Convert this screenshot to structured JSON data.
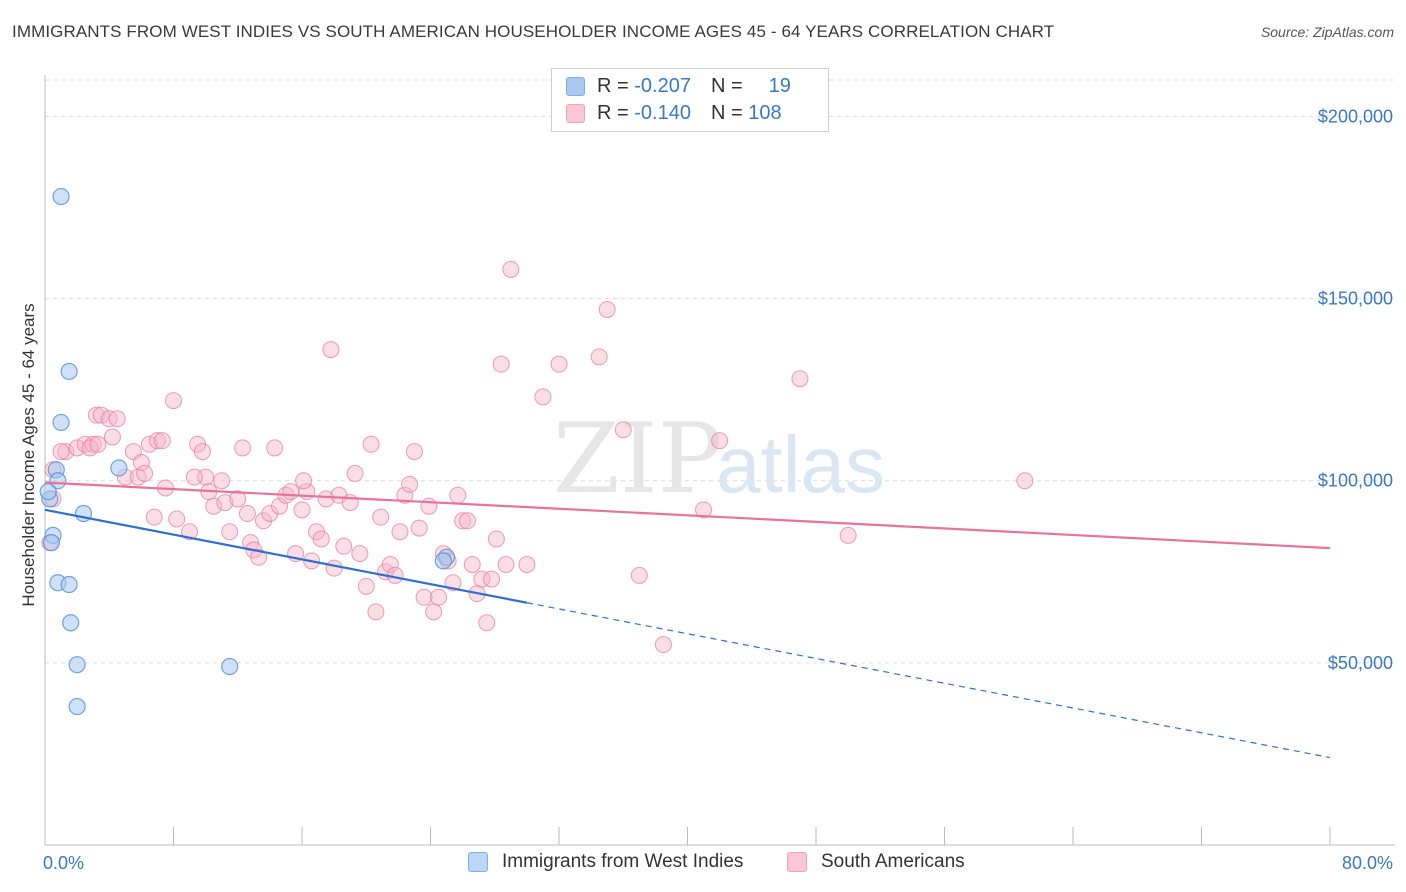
{
  "title": "IMMIGRANTS FROM WEST INDIES VS SOUTH AMERICAN HOUSEHOLDER INCOME AGES 45 - 64 YEARS CORRELATION CHART",
  "source": "Source: ZipAtlas.com",
  "watermark": {
    "zip": "ZIP",
    "atlas": "atlas"
  },
  "legend": {
    "rows": [
      {
        "r_label": "R =",
        "r_value": "-0.207",
        "n_label": "N =",
        "n_value": "19",
        "color": "#a8c8f0"
      },
      {
        "r_label": "R =",
        "r_value": "-0.140",
        "n_label": "N =",
        "n_value": "108",
        "color": "#f4b6c8"
      }
    ]
  },
  "bottom_legend": {
    "west_indies": "Immigrants from West Indies",
    "south_americans": "South Americans"
  },
  "chart_data": {
    "type": "scatter",
    "title": "IMMIGRANTS FROM WEST INDIES VS SOUTH AMERICAN HOUSEHOLDER INCOME AGES 45 - 64 YEARS CORRELATION CHART",
    "xlabel": "",
    "ylabel": "Householder Income Ages 45 - 64 years",
    "xlim": [
      0,
      80
    ],
    "ylim": [
      0,
      210000
    ],
    "x_tick_labels": [
      "0.0%",
      "80.0%"
    ],
    "y_ticks": [
      50000,
      100000,
      150000,
      200000
    ],
    "y_tick_labels": [
      "$50,000",
      "$100,000",
      "$150,000",
      "$200,000"
    ],
    "grid": "horizontal dashed",
    "legend_position": "top-center",
    "series": [
      {
        "name": "Immigrants from West Indies",
        "color": "#5b93d8",
        "fill": "#a8c8f0",
        "points": [
          [
            1.0,
            178000
          ],
          [
            1.5,
            130000
          ],
          [
            1.0,
            116000
          ],
          [
            0.7,
            103000
          ],
          [
            0.8,
            100000
          ],
          [
            0.3,
            95000
          ],
          [
            2.4,
            91000
          ],
          [
            0.5,
            85000
          ],
          [
            0.4,
            83000
          ],
          [
            0.8,
            72000
          ],
          [
            1.5,
            71500
          ],
          [
            1.6,
            61000
          ],
          [
            2.0,
            49500
          ],
          [
            2.0,
            38000
          ],
          [
            11.5,
            49000
          ],
          [
            4.6,
            103500
          ],
          [
            25.0,
            79000
          ],
          [
            24.8,
            78000
          ],
          [
            0.2,
            97000
          ]
        ],
        "trend": {
          "x0": 0,
          "y0": 92000,
          "x_solid_end": 30,
          "y_solid_end": 66500,
          "x1": 80,
          "y1": 24000
        }
      },
      {
        "name": "South Americans",
        "color": "#e8739a",
        "fill": "#f4b6c8",
        "points": [
          [
            0.5,
            103000
          ],
          [
            0.5,
            95000
          ],
          [
            0.3,
            83000
          ],
          [
            1.3,
            108000
          ],
          [
            2.0,
            109000
          ],
          [
            2.5,
            110000
          ],
          [
            3.0,
            110000
          ],
          [
            3.2,
            118000
          ],
          [
            3.5,
            118000
          ],
          [
            4.0,
            117000
          ],
          [
            4.5,
            117000
          ],
          [
            4.2,
            112000
          ],
          [
            5.0,
            101000
          ],
          [
            5.5,
            108000
          ],
          [
            6.0,
            105000
          ],
          [
            5.8,
            101000
          ],
          [
            6.2,
            102000
          ],
          [
            6.5,
            110000
          ],
          [
            7.0,
            111000
          ],
          [
            7.5,
            98000
          ],
          [
            8.0,
            122000
          ],
          [
            8.2,
            89500
          ],
          [
            6.8,
            90000
          ],
          [
            9.0,
            86000
          ],
          [
            9.5,
            110000
          ],
          [
            9.8,
            108000
          ],
          [
            10.0,
            101000
          ],
          [
            10.2,
            97000
          ],
          [
            10.5,
            93000
          ],
          [
            11.0,
            100000
          ],
          [
            11.2,
            94000
          ],
          [
            11.5,
            86000
          ],
          [
            12.0,
            95000
          ],
          [
            12.3,
            109000
          ],
          [
            12.6,
            91000
          ],
          [
            12.8,
            83000
          ],
          [
            13.0,
            81000
          ],
          [
            13.3,
            79000
          ],
          [
            13.6,
            89000
          ],
          [
            14.0,
            91000
          ],
          [
            14.3,
            109000
          ],
          [
            14.6,
            93000
          ],
          [
            15.0,
            96000
          ],
          [
            15.3,
            97000
          ],
          [
            15.6,
            80000
          ],
          [
            16.0,
            92000
          ],
          [
            16.3,
            97000
          ],
          [
            16.6,
            78000
          ],
          [
            16.9,
            86000
          ],
          [
            17.2,
            84000
          ],
          [
            17.5,
            95000
          ],
          [
            17.8,
            136000
          ],
          [
            18.0,
            76000
          ],
          [
            18.3,
            96000
          ],
          [
            18.6,
            82000
          ],
          [
            19.0,
            94000
          ],
          [
            19.3,
            102000
          ],
          [
            19.6,
            80000
          ],
          [
            20.0,
            71000
          ],
          [
            20.3,
            110000
          ],
          [
            20.6,
            64000
          ],
          [
            20.9,
            90000
          ],
          [
            21.2,
            75000
          ],
          [
            21.5,
            77000
          ],
          [
            21.8,
            74000
          ],
          [
            22.1,
            86000
          ],
          [
            22.4,
            96000
          ],
          [
            22.7,
            99000
          ],
          [
            23.0,
            108000
          ],
          [
            23.3,
            87000
          ],
          [
            23.6,
            68000
          ],
          [
            23.9,
            93000
          ],
          [
            24.2,
            64000
          ],
          [
            24.5,
            68000
          ],
          [
            24.8,
            80000
          ],
          [
            25.1,
            78000
          ],
          [
            25.4,
            72000
          ],
          [
            25.7,
            96000
          ],
          [
            26.0,
            89000
          ],
          [
            26.3,
            89000
          ],
          [
            26.6,
            77000
          ],
          [
            26.9,
            69000
          ],
          [
            27.2,
            73000
          ],
          [
            27.5,
            61000
          ],
          [
            27.8,
            73000
          ],
          [
            28.1,
            84000
          ],
          [
            28.4,
            132000
          ],
          [
            28.7,
            77000
          ],
          [
            29.0,
            158000
          ],
          [
            30.0,
            77000
          ],
          [
            31.0,
            123000
          ],
          [
            32.0,
            132000
          ],
          [
            34.5,
            134000
          ],
          [
            35.0,
            147000
          ],
          [
            36.0,
            114000
          ],
          [
            37.0,
            74000
          ],
          [
            38.5,
            55000
          ],
          [
            41.0,
            92000
          ],
          [
            42.0,
            111000
          ],
          [
            47.0,
            128000
          ],
          [
            50.0,
            85000
          ],
          [
            61.0,
            100000
          ],
          [
            1.0,
            108000
          ],
          [
            2.8,
            109000
          ],
          [
            3.3,
            110000
          ],
          [
            7.3,
            111000
          ],
          [
            9.3,
            101000
          ],
          [
            16.1,
            100000
          ]
        ],
        "trend": {
          "x0": 0,
          "y0": 99500,
          "x1": 80,
          "y1": 81500
        }
      }
    ]
  }
}
